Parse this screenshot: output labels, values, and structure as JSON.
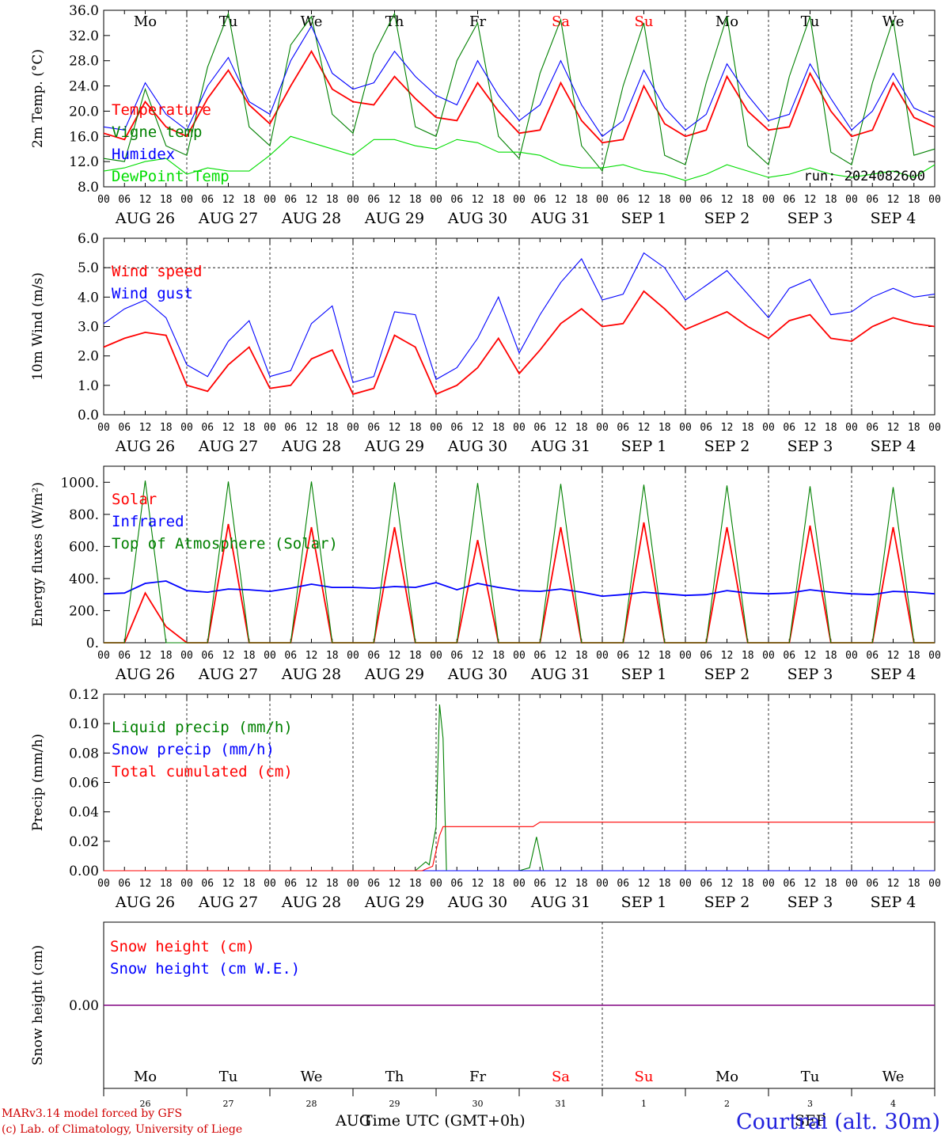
{
  "run": "run: 2024082600",
  "credits": [
    "MARv3.14 model forced by GFS",
    "(c) Lab. of Climatology, University of Liege"
  ],
  "station": "Courtrai (alt. 30m)",
  "x_title": "Time UTC (GMT+0h)",
  "month_bottom": [
    "AUG",
    "SEP"
  ],
  "hour_ticks": [
    "00",
    "06",
    "12",
    "18"
  ],
  "date_labels": [
    "AUG 26",
    "AUG 27",
    "AUG 28",
    "AUG 29",
    "AUG 30",
    "AUG 31",
    "SEP  1",
    "SEP  2",
    "SEP  3",
    "SEP  4"
  ],
  "weekdays": [
    "Mo",
    "Tu",
    "We",
    "Th",
    "Fr",
    "Sa",
    "Su",
    "Mo",
    "Tu",
    "We"
  ],
  "weekday_colors": [
    "#000000",
    "#000000",
    "#000000",
    "#000000",
    "#000000",
    "#ff0000",
    "#ff0000",
    "#000000",
    "#000000",
    "#000000"
  ],
  "day_numbers": [
    "26",
    "27",
    "28",
    "29",
    "30",
    "31",
    "1",
    "2",
    "3",
    "4"
  ],
  "colors": {
    "red": "#ff0000",
    "blue": "#0000ff",
    "green": "#008000",
    "lightgreen": "#00dd00",
    "purple": "#800080"
  },
  "chart_data": [
    {
      "type": "line",
      "ylabel": "2m Temp. (°C)",
      "ylim": [
        8.0,
        36.0
      ],
      "yticks": [
        "8.0",
        "12.0",
        "16.0",
        "20.0",
        "24.0",
        "28.0",
        "32.0",
        "36.0"
      ],
      "x": "hours since AUG 26 00 UTC, step 6, 0-240",
      "grid": "vertical dashed day lines",
      "legend": "left",
      "series": [
        {
          "name": "Temperature",
          "color": "#ff0000",
          "values": [
            16.5,
            15.5,
            21.5,
            17.5,
            16.0,
            22.0,
            26.5,
            21.0,
            18.0,
            24.0,
            29.5,
            23.5,
            21.5,
            21.0,
            25.5,
            22.0,
            19.0,
            18.5,
            24.5,
            20.0,
            16.5,
            17.0,
            24.5,
            18.5,
            15.0,
            15.5,
            24.0,
            18.0,
            16.0,
            17.0,
            25.5,
            20.0,
            17.0,
            17.5,
            26.0,
            20.0,
            16.0,
            17.0,
            24.5,
            19.0,
            17.5
          ]
        },
        {
          "name": "Vigne temp",
          "color": "#008000",
          "values": [
            12.5,
            12.0,
            23.5,
            14.5,
            13.0,
            27.0,
            35.5,
            17.5,
            14.5,
            30.5,
            35.0,
            19.5,
            16.5,
            29.0,
            35.5,
            17.5,
            16.0,
            28.0,
            34.0,
            16.0,
            12.5,
            26.0,
            34.5,
            14.5,
            10.5,
            24.0,
            34.0,
            13.0,
            11.5,
            24.5,
            35.0,
            14.5,
            11.5,
            25.5,
            35.0,
            13.5,
            11.5,
            24.5,
            34.5,
            13.0,
            14.0
          ]
        },
        {
          "name": "Humidex",
          "color": "#0000ff",
          "values": [
            17.5,
            17.0,
            24.5,
            19.5,
            17.0,
            24.0,
            28.5,
            21.5,
            19.5,
            28.0,
            33.5,
            26.0,
            23.5,
            24.5,
            29.5,
            25.5,
            22.5,
            21.0,
            28.0,
            22.5,
            18.5,
            21.0,
            28.0,
            21.0,
            16.0,
            18.5,
            26.5,
            20.5,
            17.0,
            19.5,
            27.5,
            22.5,
            18.5,
            19.5,
            27.5,
            22.0,
            17.0,
            20.0,
            26.0,
            20.5,
            19.0
          ]
        },
        {
          "name": "DewPoint Temp",
          "color": "#00dd00",
          "values": [
            10.5,
            11.0,
            12.0,
            12.5,
            10.0,
            11.0,
            10.5,
            10.5,
            13.0,
            16.0,
            15.0,
            14.0,
            13.0,
            15.5,
            15.5,
            14.5,
            14.0,
            15.5,
            15.0,
            13.5,
            13.5,
            13.0,
            11.5,
            11.0,
            11.0,
            11.5,
            10.5,
            10.0,
            9.0,
            10.0,
            11.5,
            10.5,
            9.5,
            10.0,
            11.0,
            10.0,
            9.5,
            10.0,
            10.5,
            9.5,
            11.5
          ]
        }
      ]
    },
    {
      "type": "line",
      "ylabel": "10m Wind (m/s)",
      "ylim": [
        0.0,
        6.0
      ],
      "yticks": [
        "0.0",
        "1.0",
        "2.0",
        "3.0",
        "4.0",
        "5.0",
        "6.0"
      ],
      "reference_line": 5.0,
      "legend": "left",
      "series": [
        {
          "name": "Wind speed",
          "color": "#ff0000",
          "values": [
            2.3,
            2.6,
            2.8,
            2.7,
            1.0,
            0.8,
            1.7,
            2.3,
            0.9,
            1.0,
            1.9,
            2.2,
            0.7,
            0.9,
            2.7,
            2.3,
            0.7,
            1.0,
            1.6,
            2.6,
            1.4,
            2.2,
            3.1,
            3.6,
            3.0,
            3.1,
            4.2,
            3.6,
            2.9,
            3.2,
            3.5,
            3.0,
            2.6,
            3.2,
            3.4,
            2.6,
            2.5,
            3.0,
            3.3,
            3.1,
            3.0
          ]
        },
        {
          "name": "Wind gust",
          "color": "#0000ff",
          "values": [
            3.1,
            3.6,
            3.9,
            3.3,
            1.7,
            1.3,
            2.5,
            3.2,
            1.3,
            1.5,
            3.1,
            3.7,
            1.1,
            1.3,
            3.5,
            3.4,
            1.2,
            1.6,
            2.6,
            4.0,
            2.1,
            3.4,
            4.5,
            5.3,
            3.9,
            4.1,
            5.5,
            5.0,
            3.9,
            4.4,
            4.9,
            4.1,
            3.3,
            4.3,
            4.6,
            3.4,
            3.5,
            4.0,
            4.3,
            4.0,
            4.1
          ]
        }
      ]
    },
    {
      "type": "line",
      "ylabel": "Energy fluxes (W/m²)",
      "ylim": [
        0,
        1100
      ],
      "yticks": [
        "0.",
        "200.",
        "400.",
        "600.",
        "800.",
        "1000."
      ],
      "legend": "left",
      "series": [
        {
          "name": "Solar",
          "color": "#ff0000",
          "values": [
            0,
            0,
            310,
            100,
            0,
            0,
            740,
            0,
            0,
            0,
            720,
            0,
            0,
            0,
            720,
            0,
            0,
            0,
            640,
            0,
            0,
            0,
            720,
            0,
            0,
            0,
            750,
            0,
            0,
            0,
            720,
            0,
            0,
            0,
            730,
            0,
            0,
            0,
            720,
            0,
            0
          ]
        },
        {
          "name": "Infrared",
          "color": "#0000ff",
          "values": [
            305,
            310,
            370,
            385,
            325,
            315,
            335,
            330,
            320,
            340,
            365,
            345,
            345,
            340,
            350,
            345,
            375,
            330,
            370,
            345,
            325,
            320,
            335,
            315,
            290,
            300,
            315,
            305,
            295,
            300,
            325,
            310,
            305,
            310,
            330,
            315,
            305,
            300,
            320,
            315,
            305
          ]
        },
        {
          "name": "Top of Atmosphere (Solar)",
          "color": "#008000",
          "values": [
            0,
            0,
            1010,
            0,
            0,
            0,
            1005,
            0,
            0,
            0,
            1005,
            0,
            0,
            0,
            1000,
            0,
            0,
            0,
            995,
            0,
            0,
            0,
            990,
            0,
            0,
            0,
            985,
            0,
            0,
            0,
            980,
            0,
            0,
            0,
            975,
            0,
            0,
            0,
            970,
            0,
            0
          ]
        }
      ]
    },
    {
      "type": "line",
      "ylabel": "Precip (mm/h)",
      "ylim": [
        0.0,
        0.12
      ],
      "yticks": [
        "0.00",
        "0.02",
        "0.04",
        "0.06",
        "0.08",
        "0.10",
        "0.12"
      ],
      "legend": "left",
      "series": [
        {
          "name": "Liquid precip (mm/h)",
          "color": "#008000",
          "points": [
            [
              0,
              0
            ],
            [
              90,
              0
            ],
            [
              93,
              0.006
            ],
            [
              94,
              0.004
            ],
            [
              96,
              0.03
            ],
            [
              97,
              0.113
            ],
            [
              98,
              0.09
            ],
            [
              99,
              0
            ],
            [
              120,
              0
            ],
            [
              123,
              0.002
            ],
            [
              125,
              0.023
            ],
            [
              127,
              0
            ],
            [
              240,
              0
            ]
          ]
        },
        {
          "name": "Snow precip (mm/h)",
          "color": "#0000ff",
          "points": [
            [
              0,
              0
            ],
            [
              240,
              0
            ]
          ]
        },
        {
          "name": "Total cumulated (cm)",
          "color": "#ff0000",
          "points": [
            [
              0,
              0
            ],
            [
              92,
              0
            ],
            [
              95,
              0.003
            ],
            [
              97,
              0.024
            ],
            [
              98,
              0.03
            ],
            [
              124,
              0.03
            ],
            [
              126,
              0.033
            ],
            [
              240,
              0.033
            ]
          ]
        }
      ]
    },
    {
      "type": "line",
      "ylabel": "Snow height (cm)",
      "yticks": [
        "0.00"
      ],
      "legend": "left",
      "series": [
        {
          "name": "Snow height (cm)",
          "color": "#ff0000",
          "points": [
            [
              0,
              0
            ],
            [
              240,
              0
            ]
          ]
        },
        {
          "name": "Snow height (cm W.E.)",
          "color": "#0000ff",
          "points": [
            [
              0,
              0
            ],
            [
              240,
              0
            ]
          ]
        }
      ]
    }
  ]
}
